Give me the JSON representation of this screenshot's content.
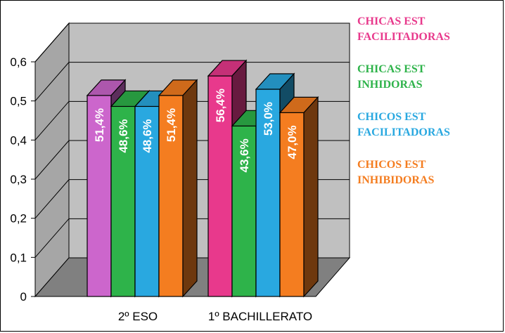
{
  "chart_data": {
    "type": "bar",
    "categories": [
      "2º ESO",
      "1º BACHILLERATO"
    ],
    "series": [
      {
        "name": "CHICAS EST FACILITADORAS",
        "values": [
          0.514,
          0.564
        ],
        "labels": [
          "51,4%",
          "56,4%"
        ],
        "color": "#cc66cc",
        "color_alt": "#e8398c"
      },
      {
        "name": "CHICAS EST INHIDORAS",
        "values": [
          0.486,
          0.436
        ],
        "labels": [
          "48,6%",
          "43,6%"
        ],
        "color": "#2eb34a",
        "color_alt": "#2eb34a"
      },
      {
        "name": "CHICOS EST FACILITADORAS",
        "values": [
          0.486,
          0.53
        ],
        "labels": [
          "48,6%",
          "53,0%"
        ],
        "color": "#29a8e0",
        "color_alt": "#29a8e0"
      },
      {
        "name": "CHICOS EST INHIBIDORAS",
        "values": [
          0.514,
          0.47
        ],
        "labels": [
          "51,4%",
          "47,0%"
        ],
        "color": "#f47d20",
        "color_alt": "#f47d20"
      }
    ],
    "y_ticks": [
      "0",
      "0,1",
      "0,2",
      "0,3",
      "0,4",
      "0,5",
      "0,6"
    ],
    "ylim": [
      0,
      0.6
    ],
    "grid": true,
    "legend_position": "right",
    "wall_color": "#c0c0c0",
    "floor_color": "#808080"
  },
  "legend": {
    "items": [
      {
        "label": "CHICAS EST\nFACILITADORAS",
        "color": "#e8398c"
      },
      {
        "label": "CHICAS EST\nINHIDORAS",
        "color": "#2eb34a"
      },
      {
        "label": "CHICOS EST\nFACILITADORAS",
        "color": "#29a8e0"
      },
      {
        "label": "CHICOS EST\nINHIBIDORAS",
        "color": "#f47d20"
      }
    ]
  }
}
